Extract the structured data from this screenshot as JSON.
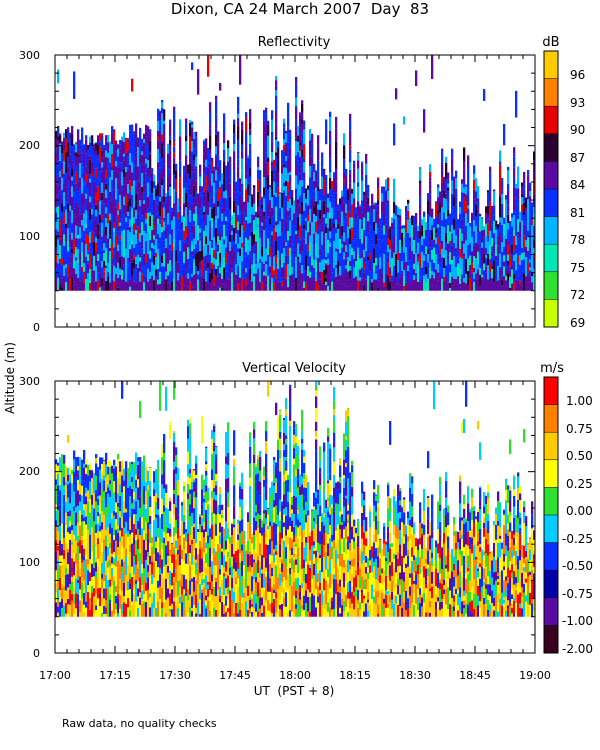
{
  "figure": {
    "title": "Dixon, CA 24 March 2007  Day  83",
    "ylabel": "Altitude (m)",
    "xlabel": "UT  (PST + 8)",
    "footnote": "Raw data, no quality checks"
  },
  "chart_data": [
    {
      "type": "heatmap",
      "title": "Reflectivity",
      "colorbar_unit": "dB",
      "colorbar_ticks": [
        "96",
        "93",
        "90",
        "87",
        "84",
        "81",
        "78",
        "75",
        "72",
        "69"
      ],
      "colorbar_colors": [
        "#ffcc00",
        "#ff7f00",
        "#e60000",
        "#2a0030",
        "#5a0aa0",
        "#0a30ff",
        "#00b4ff",
        "#00e6b4",
        "#30e030",
        "#c8ff00"
      ],
      "y_ticks": [
        "300",
        "200",
        "100",
        "0"
      ],
      "ylim": [
        0,
        300
      ],
      "xlim": [
        "17:00",
        "19:00"
      ],
      "data_band_m": [
        40,
        300
      ],
      "typical_range_dB": [
        78,
        87
      ]
    },
    {
      "type": "heatmap",
      "title": "Vertical Velocity",
      "colorbar_unit": "m/s",
      "colorbar_ticks": [
        "1.00",
        "0.75",
        "0.50",
        "0.25",
        "0.00",
        "-0.25",
        "-0.50",
        "-0.75",
        "-1.00",
        "-2.00"
      ],
      "colorbar_colors": [
        "#ff0000",
        "#ff7f00",
        "#ffcc00",
        "#ffff00",
        "#30e030",
        "#00ccff",
        "#0a30ff",
        "#0000aa",
        "#5a0aa0",
        "#3a0020"
      ],
      "y_ticks": [
        "300",
        "200",
        "100",
        "0"
      ],
      "ylim": [
        0,
        300
      ],
      "xlim": [
        "17:00",
        "19:00"
      ],
      "x_ticks": [
        "17:00",
        "17:15",
        "17:30",
        "17:45",
        "18:00",
        "18:15",
        "18:30",
        "18:45",
        "19:00"
      ],
      "data_band_m": [
        40,
        300
      ],
      "typical_range_ms": [
        -0.5,
        1.0
      ]
    }
  ]
}
